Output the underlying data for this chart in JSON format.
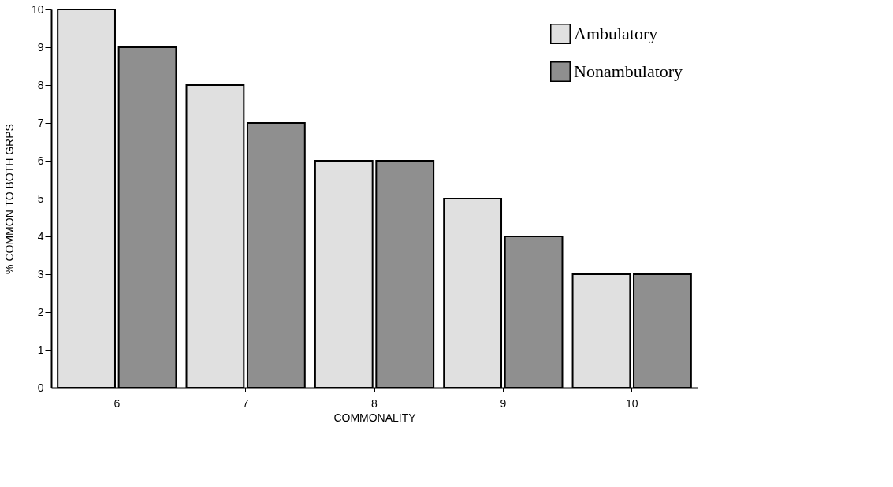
{
  "chart_data": {
    "type": "bar",
    "xlabel": "COMMONALITY",
    "ylabel": "% COMMON TO BOTH GRPS",
    "categories": [
      "6",
      "7",
      "8",
      "9",
      "10"
    ],
    "series": [
      {
        "name": "Ambulatory",
        "color": "#e0e0e0",
        "values": [
          10,
          8,
          6,
          5,
          3
        ]
      },
      {
        "name": "Nonambulatory",
        "color": "#8f8f8f",
        "values": [
          9,
          7,
          6,
          4,
          3
        ]
      }
    ],
    "ylim": [
      0,
      10
    ],
    "yticks": [
      0,
      1,
      2,
      3,
      4,
      5,
      6,
      7,
      8,
      9,
      10
    ],
    "grid": false,
    "legend": "top right"
  }
}
